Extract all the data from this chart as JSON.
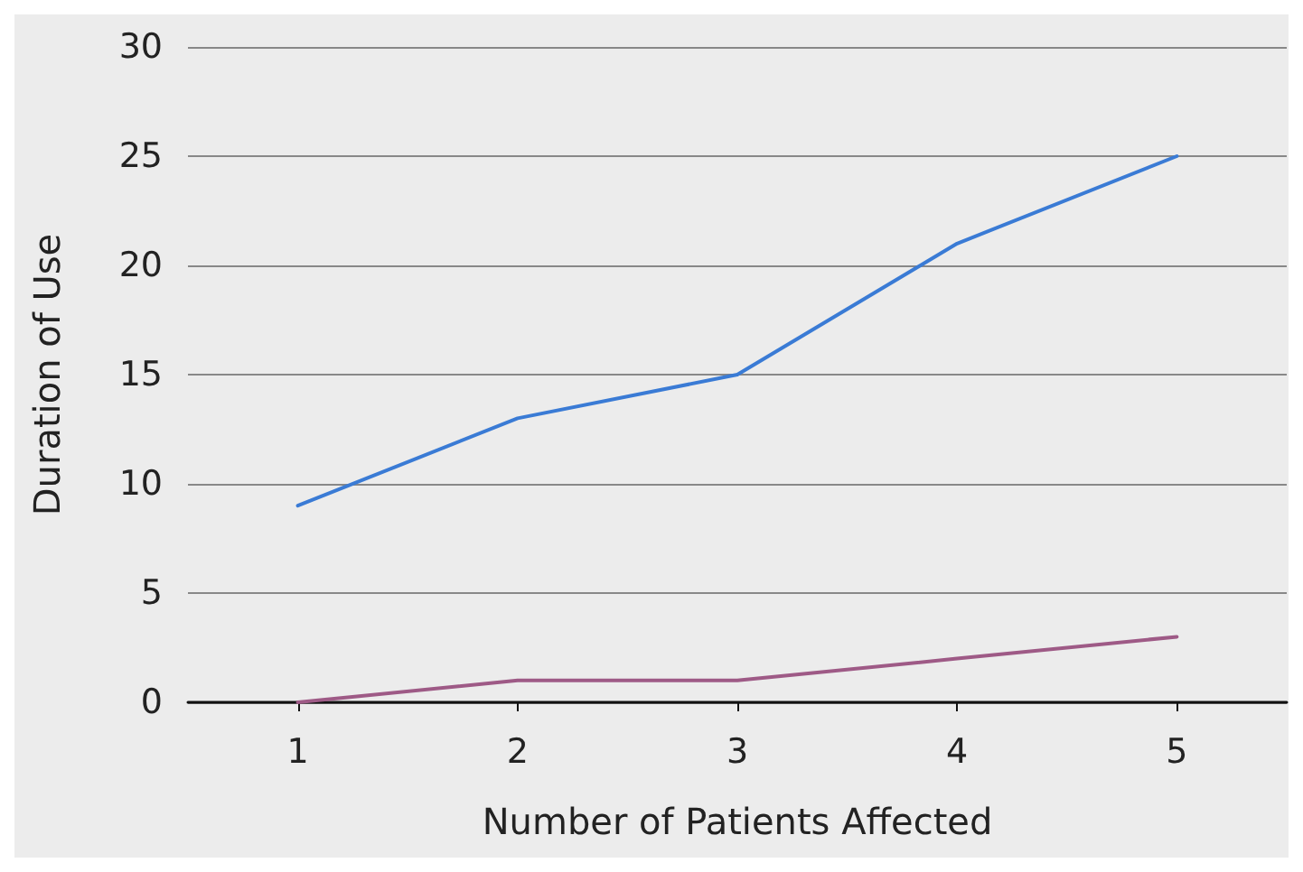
{
  "chart_data": {
    "type": "line",
    "xlabel": "Number of Patients Affected",
    "ylabel": "Duration of Use",
    "categories": [
      "1",
      "2",
      "3",
      "4",
      "5"
    ],
    "series": [
      {
        "color": "#3a7bd5",
        "values": [
          9,
          13,
          15,
          21,
          25
        ]
      },
      {
        "color": "#9e5a86",
        "values": [
          0,
          1,
          1,
          2,
          3
        ]
      }
    ],
    "ylim": [
      0,
      30
    ],
    "yticks": [
      0,
      5,
      10,
      15,
      20,
      25,
      30
    ],
    "grid": "y",
    "marker": "none",
    "line_style": "solid"
  }
}
